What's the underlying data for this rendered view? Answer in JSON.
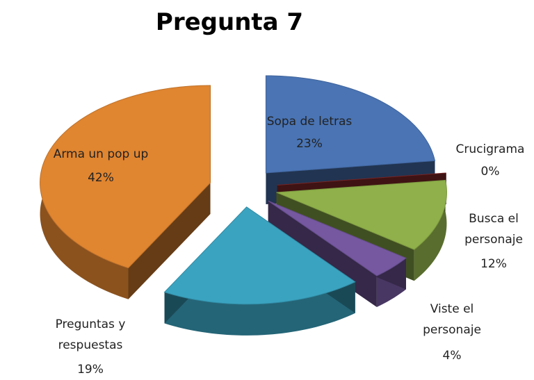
{
  "chart_data": {
    "type": "pie",
    "title": "Pregunta 7",
    "categories": [
      "Sopa de letras",
      "Crucigrama",
      "Busca el personaje",
      "Viste el personaje",
      "Preguntas y respuestas",
      "Arma un pop up"
    ],
    "values": [
      23,
      0,
      12,
      4,
      19,
      42
    ],
    "value_labels": [
      "23%",
      "0%",
      "12%",
      "4%",
      "19%",
      "42%"
    ],
    "colors": [
      "#4a74b4",
      "#8b2a2a",
      "#8fb04a",
      "#7558a0",
      "#3aa3c0",
      "#e08530"
    ]
  }
}
